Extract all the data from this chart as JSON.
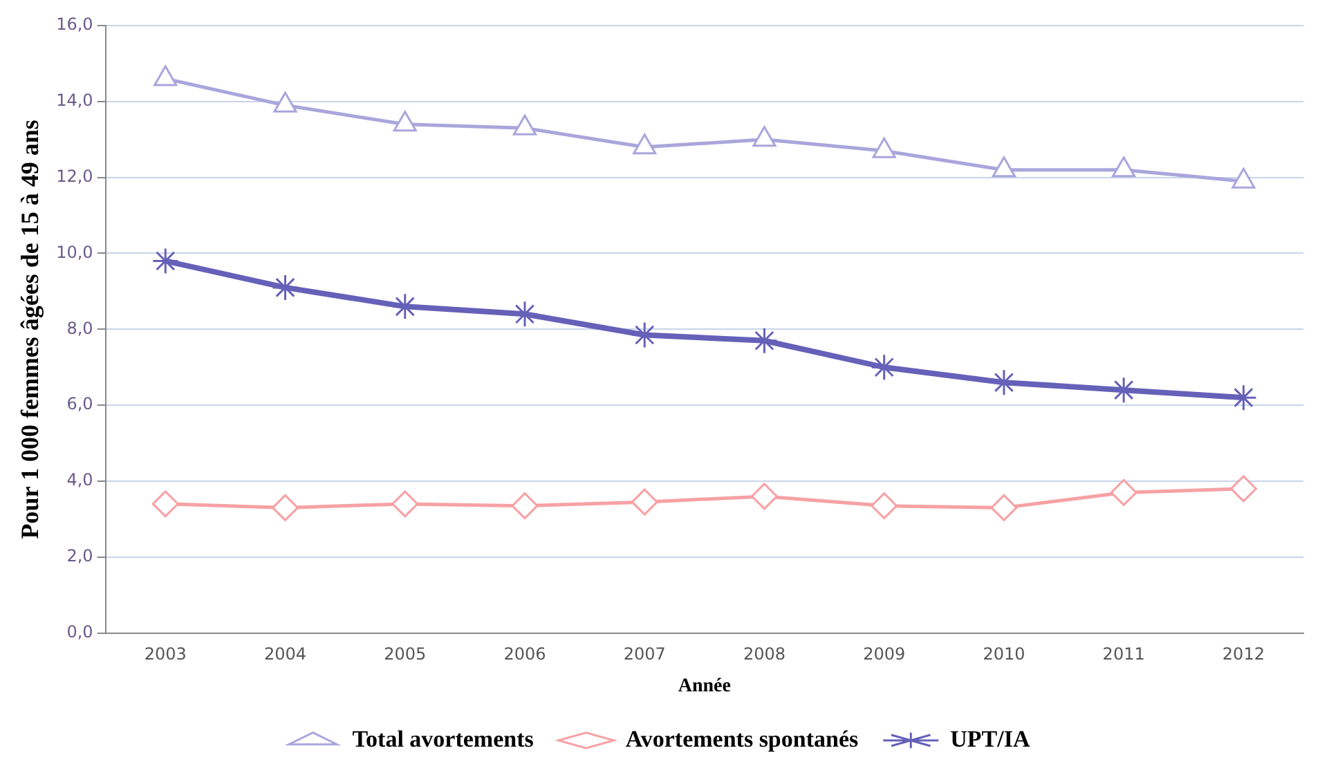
{
  "chart_data": {
    "type": "line",
    "xlabel": "Année",
    "ylabel": "Pour 1 000 femmes âgées de 15 à 49 ans",
    "categories": [
      "2003",
      "2004",
      "2005",
      "2006",
      "2007",
      "2008",
      "2009",
      "2010",
      "2011",
      "2012"
    ],
    "series": [
      {
        "name": "Total avortements",
        "color": "#a9a6dc",
        "marker": "triangle",
        "values": [
          14.6,
          13.9,
          13.4,
          13.3,
          12.8,
          13.0,
          12.7,
          12.2,
          12.2,
          11.9
        ]
      },
      {
        "name": "Avortements spontanés",
        "color": "#f7a1a4",
        "marker": "diamond",
        "values": [
          3.4,
          3.3,
          3.4,
          3.35,
          3.45,
          3.6,
          3.35,
          3.3,
          3.7,
          3.8
        ]
      },
      {
        "name": "UPT/IA",
        "color": "#6561b8",
        "marker": "cross",
        "values": [
          9.8,
          9.1,
          8.6,
          8.4,
          7.85,
          7.7,
          7.0,
          6.6,
          6.4,
          6.2
        ]
      }
    ],
    "ylim": [
      0,
      16
    ],
    "yticks": [
      {
        "value": 0,
        "label": "0,0"
      },
      {
        "value": 2,
        "label": "2,0"
      },
      {
        "value": 4,
        "label": "4,0"
      },
      {
        "value": 6,
        "label": "6,0"
      },
      {
        "value": 8,
        "label": "8,0"
      },
      {
        "value": 10,
        "label": "10,0"
      },
      {
        "value": 12,
        "label": "12,0"
      },
      {
        "value": 14,
        "label": "14,0"
      },
      {
        "value": 16,
        "label": "16,0"
      }
    ],
    "grid": "y",
    "legend": "bottom",
    "line_style": "solid"
  }
}
